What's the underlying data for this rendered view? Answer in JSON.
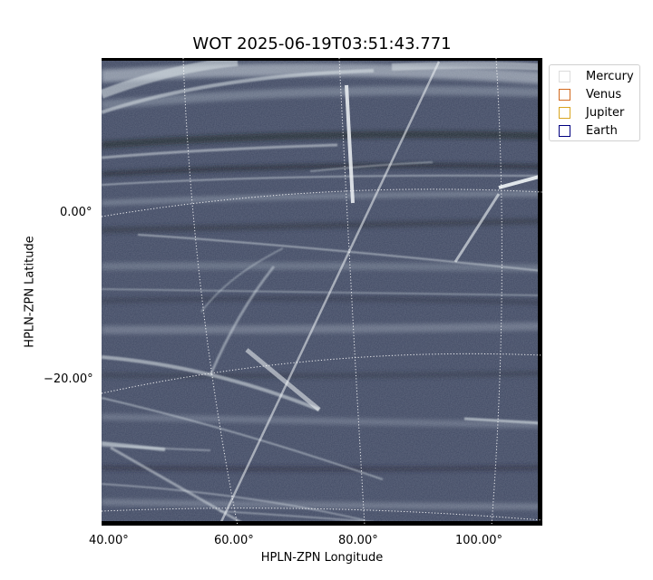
{
  "title": "WOT 2025-06-19T03:51:43.771",
  "axes": {
    "xlabel": "HPLN-ZPN Longitude",
    "ylabel": "HPLN-ZPN Latitude",
    "x_ticks": [
      "40.00°",
      "60.00°",
      "80.00°",
      "100.00°"
    ],
    "y_ticks": [
      "0.00°",
      "−20.00°"
    ]
  },
  "legend": [
    {
      "name": "Mercury",
      "color": "#dcdcdc"
    },
    {
      "name": "Venus",
      "color": "#d2691e"
    },
    {
      "name": "Jupiter",
      "color": "#daa520"
    },
    {
      "name": "Earth",
      "color": "#000080"
    }
  ],
  "image": {
    "background": "#3e4761",
    "streak_color": "#dbe4e8"
  }
}
